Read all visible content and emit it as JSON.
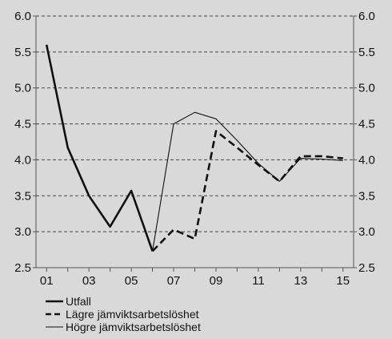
{
  "chart_data": {
    "type": "line",
    "title": "",
    "xlabel": "",
    "ylabel": "",
    "x": [
      1,
      2,
      3,
      4,
      5,
      6,
      7,
      8,
      9,
      10,
      11,
      12,
      13,
      14,
      15
    ],
    "x_tick_labels": [
      "01",
      "03",
      "05",
      "07",
      "09",
      "11",
      "13",
      "15"
    ],
    "x_tick_values": [
      1,
      3,
      5,
      7,
      9,
      11,
      13,
      15
    ],
    "y_tick_labels": [
      "2.5",
      "3.0",
      "3.5",
      "4.0",
      "4.5",
      "5.0",
      "5.5",
      "6.0"
    ],
    "ylim": [
      2.5,
      6.0
    ],
    "xlim": [
      0.5,
      15.5
    ],
    "grid": "horizontal dashed",
    "secondary_y_axis": true,
    "legend_position": "bottom-left",
    "series": [
      {
        "name": "Utfall",
        "style": "thick-solid",
        "x": [
          1,
          2,
          3,
          4,
          5,
          6
        ],
        "values": [
          5.6,
          4.17,
          3.5,
          3.07,
          3.57,
          2.73
        ]
      },
      {
        "name": "Lägre jämviktsarbetslöshet",
        "style": "thick-dashed",
        "x": [
          6,
          7,
          8,
          9,
          10,
          11,
          12,
          13,
          14,
          15
        ],
        "values": [
          2.73,
          3.03,
          2.9,
          4.4,
          4.17,
          3.93,
          3.7,
          4.05,
          4.05,
          4.02
        ]
      },
      {
        "name": "Högre jämviktsarbetslöshet",
        "style": "thin-solid",
        "x": [
          6,
          7,
          8,
          9,
          10,
          11,
          12,
          13,
          14,
          15
        ],
        "values": [
          2.73,
          4.5,
          4.66,
          4.57,
          4.27,
          3.95,
          3.7,
          4.02,
          4.01,
          3.99
        ]
      }
    ]
  },
  "colors": {
    "background": "#d9d9d9",
    "plot_background": "#d9d9d9",
    "line": "#111111",
    "grid": "#444444",
    "axis": "#555555"
  }
}
